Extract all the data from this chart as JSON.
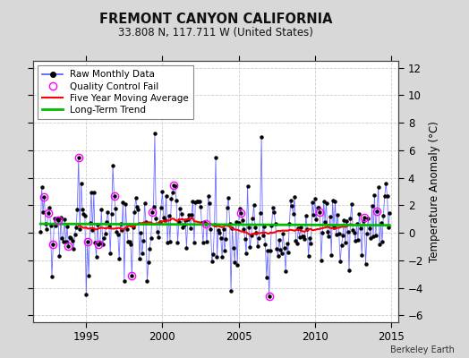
{
  "title": "FREMONT CANYON CALIFORNIA",
  "subtitle": "33.808 N, 117.711 W (United States)",
  "ylabel": "Temperature Anomaly (°C)",
  "credit": "Berkeley Earth",
  "xlim": [
    1991.5,
    2015.5
  ],
  "ylim": [
    -6.5,
    12.5
  ],
  "yticks": [
    -6,
    -4,
    -2,
    0,
    2,
    4,
    6,
    8,
    10,
    12
  ],
  "xticks": [
    1995,
    2000,
    2005,
    2010,
    2015
  ],
  "bg_color": "#d8d8d8",
  "plot_bg": "#ffffff",
  "raw_color": "#5555ff",
  "raw_marker_color": "#000000",
  "qc_color": "#ff00ff",
  "ma_color": "#ff0000",
  "trend_color": "#00bb00",
  "grid_color": "#cccccc",
  "legend_items": [
    {
      "label": "Raw Monthly Data"
    },
    {
      "label": "Quality Control Fail"
    },
    {
      "label": "Five Year Moving Average"
    },
    {
      "label": "Long-Term Trend"
    }
  ]
}
